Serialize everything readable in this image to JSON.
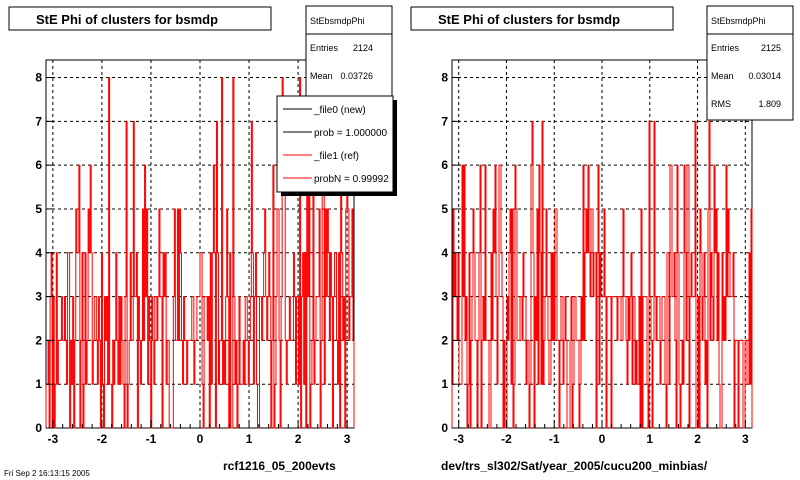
{
  "panels": [
    {
      "title": "StE Phi of clusters for bsmdp",
      "xlabel": "rcf1216_05_200evts",
      "stats": {
        "name": "StEbsmdpPhi",
        "entries_label": "Entries",
        "entries": "2124",
        "mean_label": "Mean",
        "mean": "0.03726"
      },
      "legend": [
        {
          "label": "_file0 (new)",
          "color": "#000000"
        },
        {
          "label": "prob = 1.000000",
          "color": "#000000"
        },
        {
          "label": "_file1 (ref)",
          "color": "#ff0000"
        },
        {
          "label": "probN = 0.99992",
          "color": "#ff0000"
        }
      ]
    },
    {
      "title": "StE Phi of clusters for bsmdp",
      "xlabel": "dev/trs_sl302/Sat/year_2005/cucu200_minbias/",
      "stats": {
        "name": "StEbsmdpPhi",
        "entries_label": "Entries",
        "entries": "2125",
        "mean_label": "Mean",
        "mean": "0.03014",
        "rms_label": "RMS",
        "rms": "1.809"
      }
    }
  ],
  "footer_text": "Fri Sep  2 16:13:15 2005",
  "colors": {
    "histogram": "#ff0000",
    "axis": "#000000",
    "grid": "#000000"
  },
  "chart_data": [
    {
      "type": "bar",
      "title": "StE Phi of clusters for bsmdp",
      "xlabel": "rcf1216_05_200evts",
      "ylabel": "",
      "xlim": [
        -3.14,
        3.14
      ],
      "ylim": [
        0,
        8.4
      ],
      "xticks": [
        "-3",
        "-2",
        "-1",
        "0",
        "1",
        "2",
        "3"
      ],
      "yticks": [
        "0",
        "1",
        "2",
        "3",
        "4",
        "5",
        "6",
        "7",
        "8"
      ],
      "grid": true,
      "series": [
        {
          "name": "_file1 (ref)",
          "color": "#ff0000",
          "seed": 11,
          "nbins": 300,
          "max": 8
        }
      ]
    },
    {
      "type": "bar",
      "title": "StE Phi of clusters for bsmdp",
      "xlabel": "dev/trs_sl302/Sat/year_2005/cucu200_minbias/",
      "ylabel": "",
      "xlim": [
        -3.14,
        3.14
      ],
      "ylim": [
        0,
        8.4
      ],
      "xticks": [
        "-3",
        "-2",
        "-1",
        "0",
        "1",
        "2",
        "3"
      ],
      "yticks": [
        "0",
        "1",
        "2",
        "3",
        "4",
        "5",
        "6",
        "7",
        "8"
      ],
      "grid": true,
      "series": [
        {
          "name": "",
          "color": "#ff0000",
          "seed": 29,
          "nbins": 300,
          "max": 8
        }
      ]
    }
  ]
}
